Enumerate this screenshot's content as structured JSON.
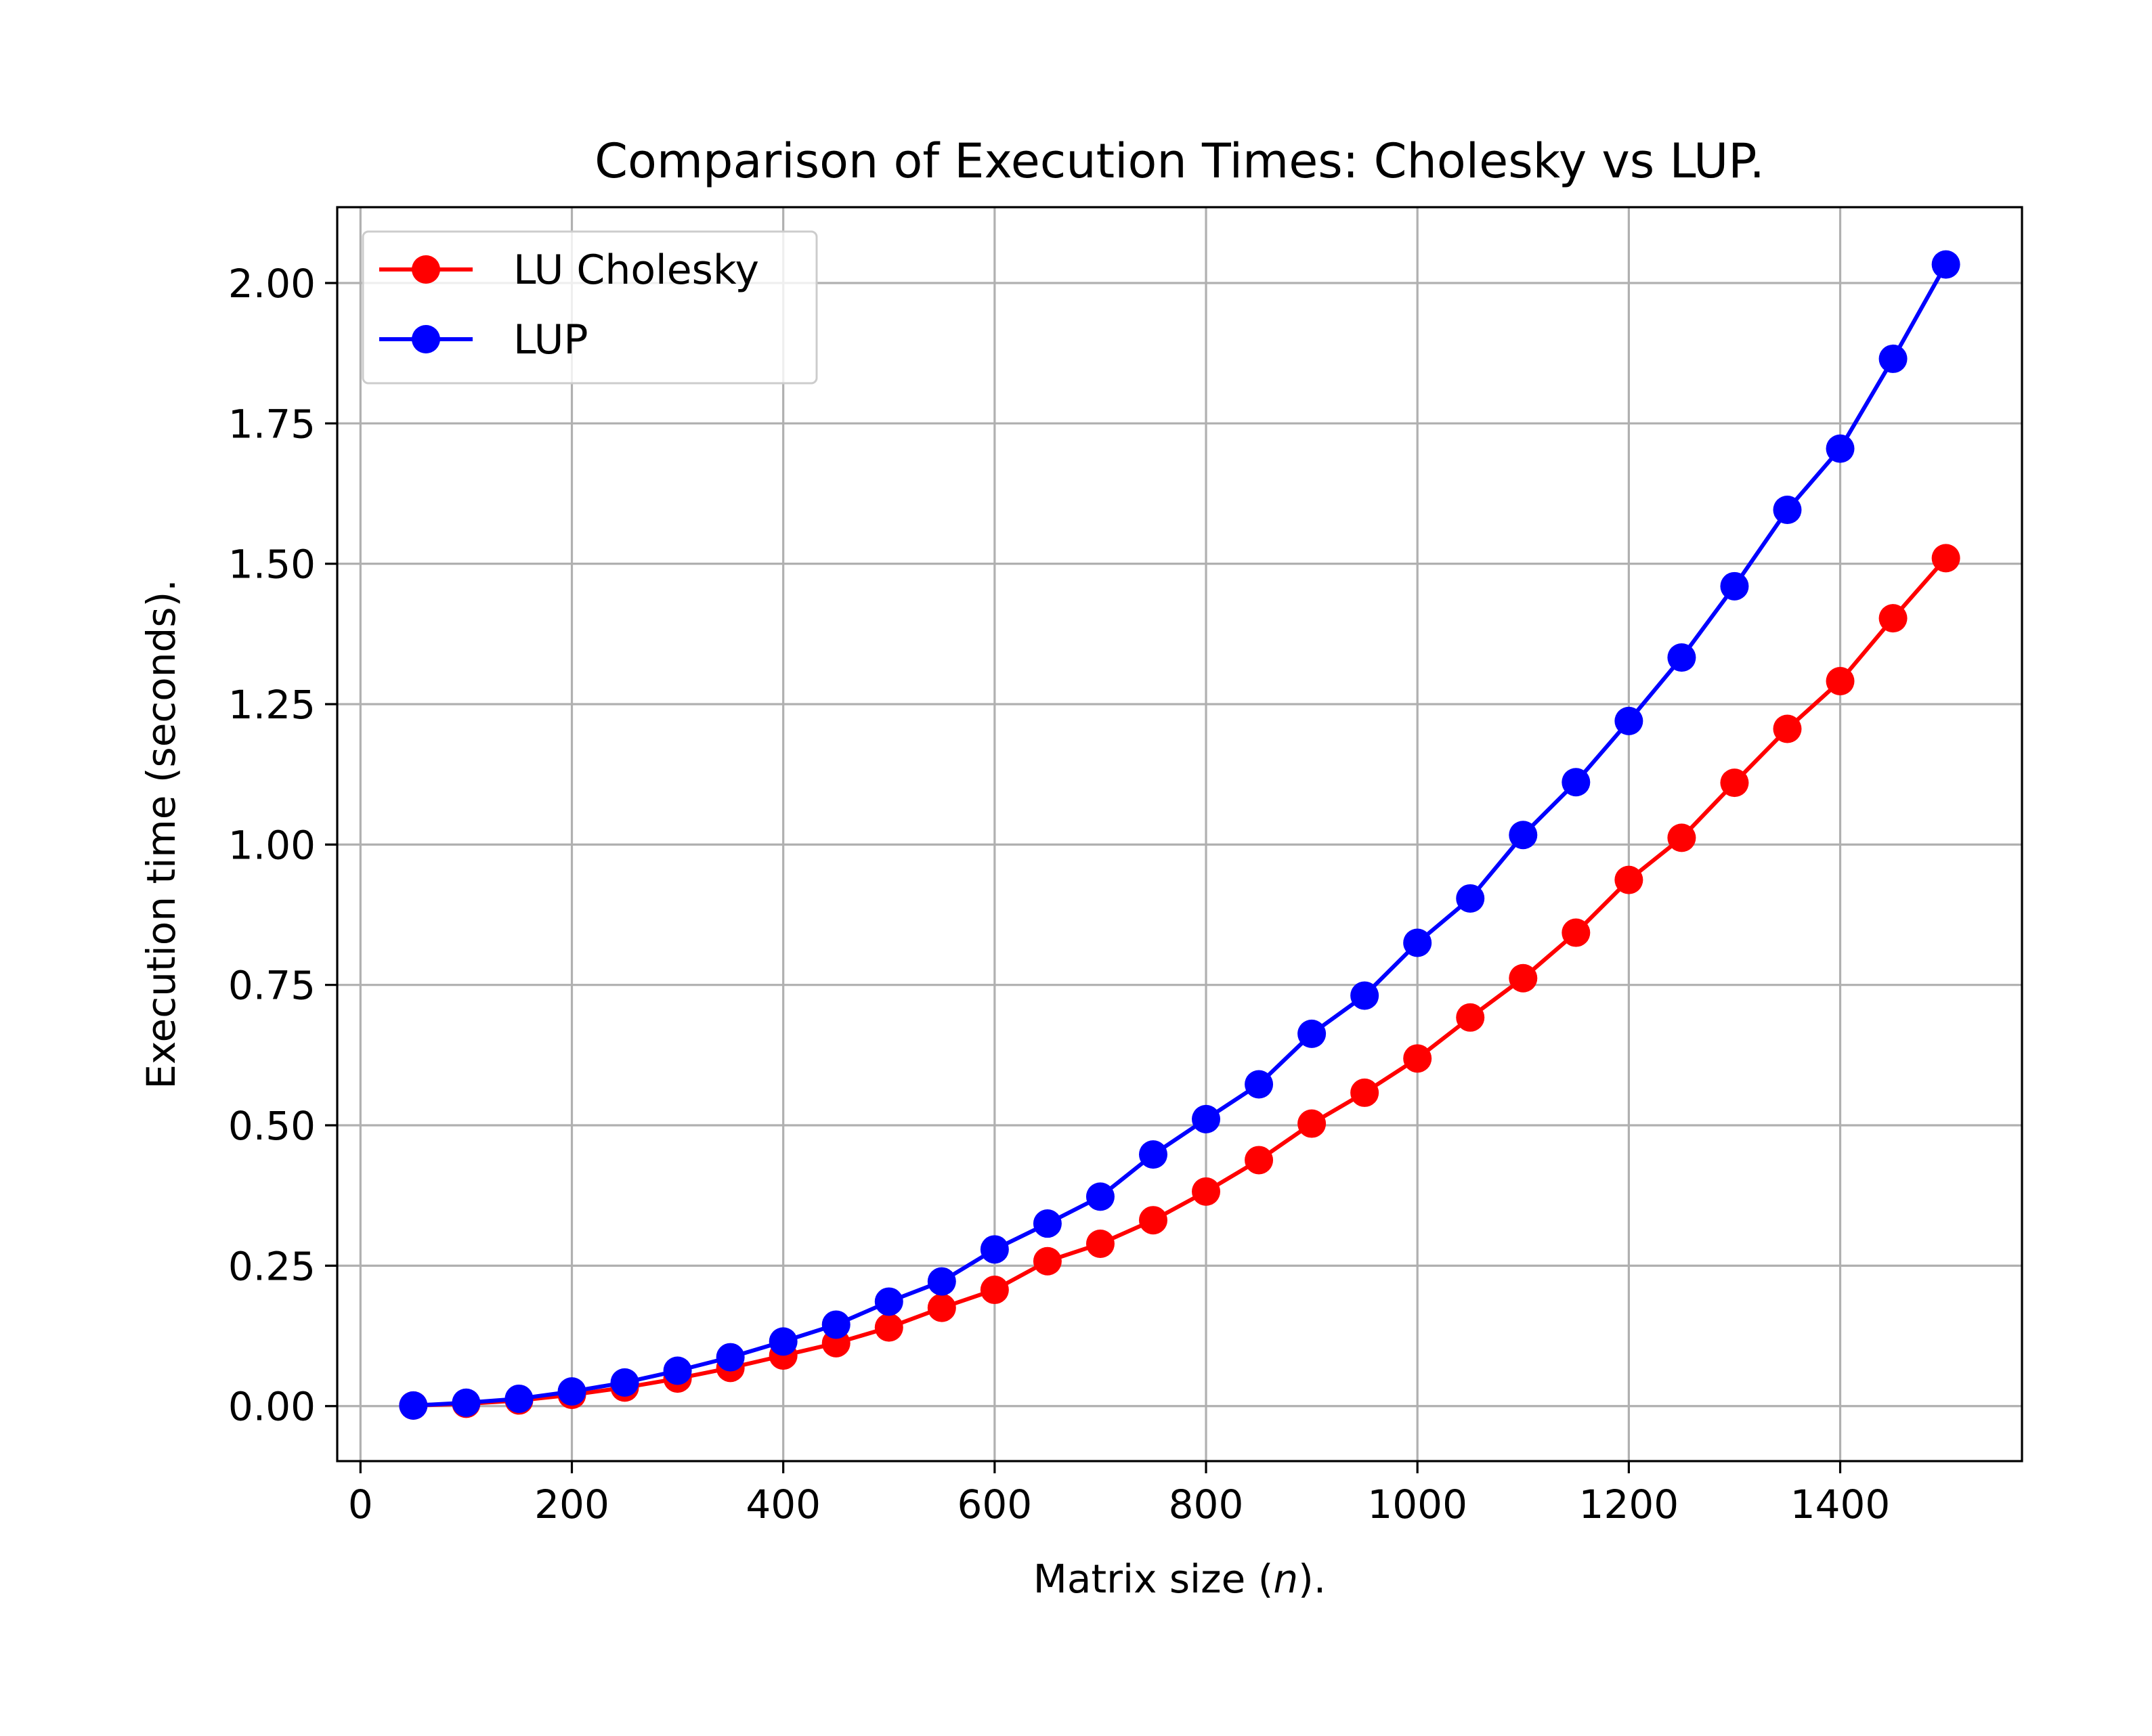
{
  "chart_data": {
    "type": "line",
    "title": "Comparison of Execution Times: Cholesky vs LUP.",
    "xlabel_prefix": "Matrix size (",
    "xlabel_var": "n",
    "xlabel_suffix": ").",
    "ylabel": "Execution time (seconds).",
    "xlim": [
      -22,
      1572
    ],
    "ylim": [
      -0.098,
      2.135
    ],
    "xticks": [
      0,
      200,
      400,
      600,
      800,
      1000,
      1200,
      1400
    ],
    "xtick_labels": [
      "0",
      "200",
      "400",
      "600",
      "800",
      "1000",
      "1200",
      "1400"
    ],
    "yticks": [
      0,
      0.25,
      0.5,
      0.75,
      1.0,
      1.25,
      1.5,
      1.75,
      2.0
    ],
    "ytick_labels": [
      "0.00",
      "0.25",
      "0.50",
      "0.75",
      "1.00",
      "1.25",
      "1.50",
      "1.75",
      "2.00"
    ],
    "grid": true,
    "legend_position": "top-left",
    "x": [
      50,
      100,
      150,
      200,
      250,
      300,
      350,
      400,
      450,
      500,
      550,
      600,
      650,
      700,
      750,
      800,
      850,
      900,
      950,
      1000,
      1050,
      1100,
      1150,
      1200,
      1250,
      1300,
      1350,
      1400,
      1450,
      1500
    ],
    "series": [
      {
        "name": "LU Cholesky",
        "color": "#ff0000",
        "values": [
          0.001,
          0.004,
          0.01,
          0.02,
          0.033,
          0.049,
          0.068,
          0.09,
          0.112,
          0.14,
          0.175,
          0.207,
          0.258,
          0.289,
          0.331,
          0.382,
          0.438,
          0.503,
          0.558,
          0.619,
          0.692,
          0.762,
          0.843,
          0.937,
          1.012,
          1.11,
          1.206,
          1.291,
          1.403,
          1.51
        ]
      },
      {
        "name": "LUP",
        "color": "#0000ff",
        "values": [
          0.001,
          0.006,
          0.013,
          0.026,
          0.042,
          0.063,
          0.087,
          0.115,
          0.145,
          0.186,
          0.222,
          0.279,
          0.325,
          0.373,
          0.448,
          0.511,
          0.573,
          0.663,
          0.731,
          0.825,
          0.904,
          1.017,
          1.111,
          1.22,
          1.333,
          1.46,
          1.596,
          1.705,
          1.865,
          2.033
        ]
      }
    ]
  }
}
